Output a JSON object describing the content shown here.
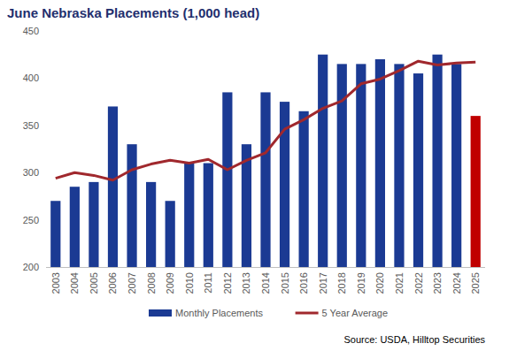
{
  "chart_data": {
    "type": "bar",
    "title": "June Nebraska Placements (1,000 head)",
    "annotations": [
      "Source: USDA, Hilltop Securities"
    ],
    "categories": [
      "2003",
      "2004",
      "2005",
      "2006",
      "2007",
      "2008",
      "2009",
      "2010",
      "2011",
      "2012",
      "2013",
      "2014",
      "2015",
      "2016",
      "2017",
      "2018",
      "2019",
      "2020",
      "2021",
      "2022",
      "2023",
      "2024",
      "2025"
    ],
    "series": [
      {
        "name": "Monthly Placements",
        "type": "bar",
        "colors": [
          "#1b3a93",
          "#1b3a93",
          "#1b3a93",
          "#1b3a93",
          "#1b3a93",
          "#1b3a93",
          "#1b3a93",
          "#1b3a93",
          "#1b3a93",
          "#1b3a93",
          "#1b3a93",
          "#1b3a93",
          "#1b3a93",
          "#1b3a93",
          "#1b3a93",
          "#1b3a93",
          "#1b3a93",
          "#1b3a93",
          "#1b3a93",
          "#1b3a93",
          "#1b3a93",
          "#1b3a93",
          "#c00000"
        ],
        "values": [
          270,
          285,
          290,
          370,
          330,
          290,
          270,
          310,
          310,
          385,
          330,
          385,
          375,
          365,
          425,
          415,
          415,
          420,
          415,
          405,
          425,
          415,
          360
        ]
      },
      {
        "name": "5 Year Average",
        "type": "line",
        "color": "#a0282d",
        "values": [
          294,
          300,
          297,
          292,
          303,
          309,
          313,
          310,
          314,
          303,
          313,
          321,
          346,
          356,
          368,
          376,
          394,
          399,
          408,
          418,
          414,
          416,
          417
        ]
      }
    ],
    "ylim": [
      200,
      450
    ],
    "yticks": [
      200,
      250,
      300,
      350,
      400,
      450
    ],
    "grid": false,
    "legend": "bottom"
  }
}
